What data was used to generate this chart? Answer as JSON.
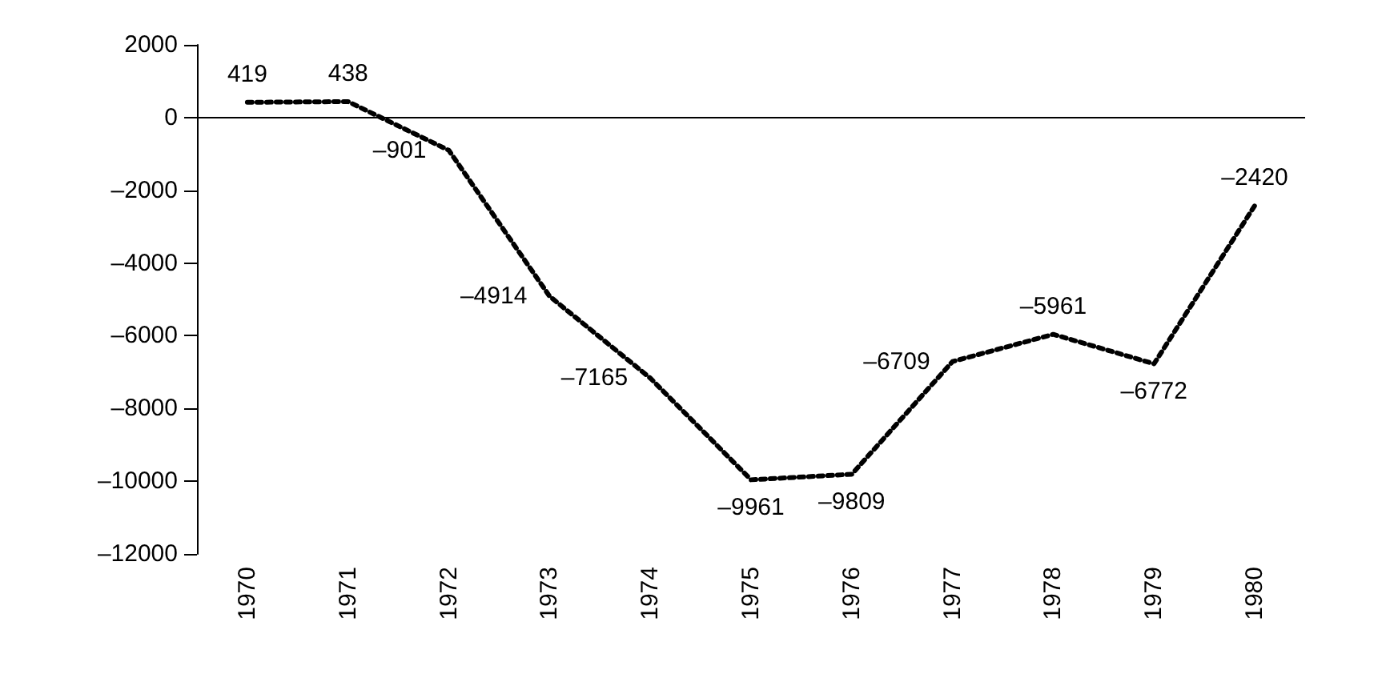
{
  "chart_data": {
    "type": "line",
    "categories": [
      "1970",
      "1971",
      "1972",
      "1973",
      "1974",
      "1975",
      "1976",
      "1977",
      "1978",
      "1979",
      "1980"
    ],
    "series": [
      {
        "color": "#000000",
        "values": [
          419,
          438,
          -901,
          -4914,
          -7165,
          -9961,
          -9809,
          -6709,
          -5961,
          -6772,
          -2420
        ],
        "value_labels": [
          "419",
          "438",
          "–901",
          "–4914",
          "–7165",
          "–9961",
          "–9809",
          "–6709",
          "–5961",
          "–6772",
          "–2420"
        ]
      }
    ],
    "ylim": [
      -12000,
      2000
    ],
    "yticks": [
      {
        "value": -12000,
        "label": "–12000"
      },
      {
        "value": -10000,
        "label": "–10000"
      },
      {
        "value": -8000,
        "label": "–8000"
      },
      {
        "value": -6000,
        "label": "–6000"
      },
      {
        "value": -4000,
        "label": "–4000"
      },
      {
        "value": -2000,
        "label": "–2000"
      },
      0,
      2000
    ],
    "ref_lines": [
      {
        "axis": "y",
        "value": 0,
        "color": "#000000"
      }
    ],
    "grid": false,
    "marker": "none",
    "line_style": "dotted"
  }
}
